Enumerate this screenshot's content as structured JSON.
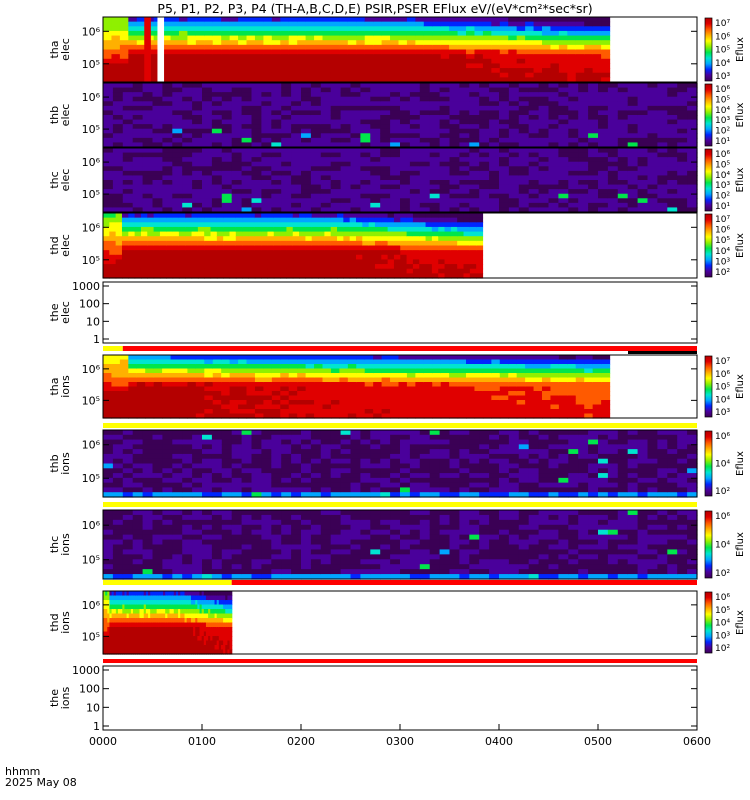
{
  "title": "P5, P1, P2, P3, P4 (TH-A,B,C,D,E) PSIR,PSER EFlux eV/(eV*cm²*sec*sr)",
  "footer": {
    "label1": "hhmm",
    "label2": "2025 May 08"
  },
  "chart_data": {
    "type": "heatmap",
    "x_axis": {
      "ticks": [
        "0000",
        "0100",
        "0200",
        "0300",
        "0400",
        "0500",
        "0600"
      ],
      "range": [
        "0000",
        "0600"
      ]
    },
    "panels": [
      {
        "id": "tha-elec",
        "ylabel": [
          "tha",
          "elec"
        ],
        "yscale": "log",
        "yticks": [
          "10⁶",
          "10⁵"
        ],
        "ytick_values": [
          1000000,
          100000
        ],
        "colorbar": {
          "label": "Eflux",
          "ticks": [
            "10⁷",
            "10⁶",
            "10⁵",
            "10⁴",
            "10³"
          ]
        },
        "data_end": "0507",
        "gaps": [
          [
            "0025",
            "0029"
          ],
          [
            "0033",
            "0037"
          ]
        ],
        "style": "magnetosphere"
      },
      {
        "id": "thb-elec",
        "ylabel": [
          "thb",
          "elec"
        ],
        "yscale": "log",
        "yticks": [
          "10⁶",
          "10⁵"
        ],
        "ytick_values": [
          1000000,
          100000
        ],
        "colorbar": {
          "label": "Eflux",
          "ticks": [
            "10⁶",
            "10⁵",
            "10⁴",
            "10³",
            "10²",
            "10¹"
          ]
        },
        "data_end": "0600",
        "style": "solarwind"
      },
      {
        "id": "thc-elec",
        "ylabel": [
          "thc",
          "elec"
        ],
        "yscale": "log",
        "yticks": [
          "10⁶",
          "10⁵"
        ],
        "ytick_values": [
          1000000,
          100000
        ],
        "colorbar": {
          "label": "Eflux",
          "ticks": [
            "10⁶",
            "10⁵",
            "10⁴",
            "10³",
            "10²",
            "10¹"
          ]
        },
        "data_end": "0600",
        "style": "solarwind"
      },
      {
        "id": "thd-elec",
        "ylabel": [
          "thd",
          "elec"
        ],
        "yscale": "log",
        "yticks": [
          "10⁶",
          "10⁵"
        ],
        "ytick_values": [
          1000000,
          100000
        ],
        "colorbar": {
          "label": "Eflux",
          "ticks": [
            "10⁷",
            "10⁶",
            "10⁵",
            "10⁴",
            "10³",
            "10²"
          ]
        },
        "data_end": "0350",
        "style": "magnetosphere"
      },
      {
        "id": "the-elec",
        "ylabel": [
          "the",
          "elec"
        ],
        "yscale": "log",
        "yticks": [
          "1000",
          "100",
          "10",
          "1"
        ],
        "ytick_values": [
          1000,
          100,
          10,
          1
        ],
        "empty": true
      },
      {
        "id": "tha-ions",
        "ylabel": [
          "tha",
          "ions"
        ],
        "yscale": "log",
        "yticks": [
          "10⁶",
          "10⁵"
        ],
        "ytick_values": [
          1000000,
          100000
        ],
        "colorbar": {
          "label": "Eflux",
          "ticks": [
            "10⁷",
            "10⁶",
            "10⁵",
            "10⁴",
            "10³"
          ]
        },
        "data_end": "0507",
        "style": "magnetosphere_ions"
      },
      {
        "id": "thb-ions",
        "ylabel": [
          "thb",
          "ions"
        ],
        "yscale": "log",
        "yticks": [
          "10⁶",
          "10⁵"
        ],
        "ytick_values": [
          1000000,
          100000
        ],
        "colorbar": {
          "label": "Eflux",
          "ticks": [
            "10⁶",
            "10⁴",
            "10²"
          ]
        },
        "data_end": "0600",
        "style": "solarwind_ions"
      },
      {
        "id": "thc-ions",
        "ylabel": [
          "thc",
          "ions"
        ],
        "yscale": "log",
        "yticks": [
          "10⁶",
          "10⁵"
        ],
        "ytick_values": [
          1000000,
          100000
        ],
        "colorbar": {
          "label": "Eflux",
          "ticks": [
            "10⁶",
            "10⁴",
            "10²"
          ]
        },
        "data_end": "0600",
        "style": "solarwind_ions"
      },
      {
        "id": "thd-ions",
        "ylabel": [
          "thd",
          "ions"
        ],
        "yscale": "log",
        "yticks": [
          "10⁶",
          "10⁵"
        ],
        "ytick_values": [
          1000000,
          100000
        ],
        "colorbar": {
          "label": "Eflux",
          "ticks": [
            "10⁶",
            "10⁵",
            "10⁴",
            "10³",
            "10²"
          ]
        },
        "data_end": "0118",
        "style": "magnetosphere"
      },
      {
        "id": "the-ions",
        "ylabel": [
          "the",
          "ions"
        ],
        "yscale": "log",
        "yticks": [
          "1000",
          "100",
          "10",
          "1"
        ],
        "ytick_values": [
          1000,
          100,
          10,
          1
        ],
        "empty": true
      }
    ],
    "mode_bars": [
      {
        "after": "the-elec",
        "segments": [
          {
            "from": "0000",
            "to": "0012",
            "color": "#ffff00"
          },
          {
            "from": "0012",
            "to": "0600",
            "color": "#ff0000"
          }
        ],
        "extra": {
          "from": "0500",
          "to": "0600",
          "color": "#000000"
        }
      },
      {
        "after": "tha-ions",
        "segments": [
          {
            "from": "0000",
            "to": "0600",
            "color": "#ffff00"
          }
        ]
      },
      {
        "after": "thb-ions",
        "segments": [
          {
            "from": "0000",
            "to": "0600",
            "color": "#ffff00"
          }
        ]
      },
      {
        "after": "thc-ions",
        "segments": [
          {
            "from": "0000",
            "to": "0118",
            "color": "#ffff00"
          },
          {
            "from": "0118",
            "to": "0600",
            "color": "#ff0000"
          }
        ]
      },
      {
        "after": "thd-ions",
        "segments": [
          {
            "from": "0000",
            "to": "0600",
            "color": "#ff0000"
          }
        ]
      }
    ],
    "colorscale": [
      "#3b0055",
      "#4a009b",
      "#0026ff",
      "#00a6ff",
      "#00e5d0",
      "#00e64b",
      "#8ff000",
      "#ffff00",
      "#ffb000",
      "#ff5a00",
      "#e00000",
      "#b40000"
    ],
    "xlabel": "",
    "grid": false
  }
}
